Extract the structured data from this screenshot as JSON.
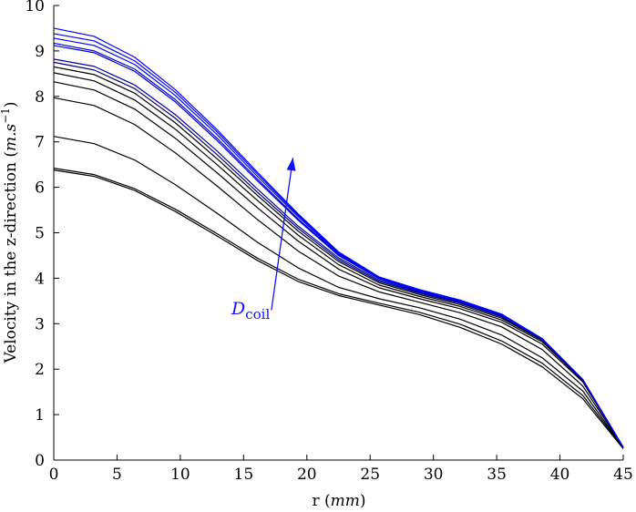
{
  "chart_data": {
    "type": "line",
    "title": "",
    "xlabel": "r (mm)",
    "xlabel_plain": "r (",
    "xlabel_unit": "mm",
    "xlabel_close": ")",
    "ylabel_prefix": "Velocity in the z-direction (",
    "ylabel_unit": "m.s",
    "ylabel_exp": "−1",
    "ylabel_close": ")",
    "xlim": [
      0,
      45
    ],
    "ylim": [
      0,
      10
    ],
    "xticks": [
      0,
      5,
      10,
      15,
      20,
      25,
      30,
      35,
      40,
      45
    ],
    "yticks": [
      0,
      1,
      2,
      3,
      4,
      5,
      6,
      7,
      8,
      9,
      10
    ],
    "grid": false,
    "x": [
      0,
      3.2,
      6.4,
      9.6,
      12.9,
      16.1,
      19.3,
      22.5,
      25.7,
      28.9,
      32.1,
      35.4,
      38.6,
      41.8,
      45
    ],
    "series": [
      {
        "color": "#000000",
        "values": [
          6.38,
          6.24,
          5.93,
          5.47,
          4.93,
          4.39,
          3.93,
          3.62,
          3.41,
          3.2,
          2.92,
          2.55,
          2.05,
          1.35,
          0.25
        ]
      },
      {
        "color": "#000000",
        "values": [
          6.42,
          6.28,
          5.97,
          5.52,
          4.98,
          4.44,
          3.98,
          3.66,
          3.45,
          3.25,
          2.99,
          2.62,
          2.13,
          1.42,
          0.27
        ]
      },
      {
        "color": "#000000",
        "values": [
          7.12,
          6.96,
          6.6,
          6.06,
          5.43,
          4.79,
          4.23,
          3.8,
          3.55,
          3.35,
          3.1,
          2.75,
          2.25,
          1.52,
          0.27
        ]
      },
      {
        "color": "#000000",
        "values": [
          7.97,
          7.8,
          7.38,
          6.76,
          6.03,
          5.29,
          4.6,
          4.05,
          3.7,
          3.47,
          3.24,
          2.93,
          2.43,
          1.63,
          0.28
        ]
      },
      {
        "color": "#000000",
        "values": [
          8.32,
          8.14,
          7.72,
          7.08,
          6.32,
          5.55,
          4.82,
          4.2,
          3.79,
          3.55,
          3.33,
          3.03,
          2.55,
          1.72,
          0.28
        ]
      },
      {
        "color": "#000000",
        "values": [
          8.52,
          8.34,
          7.92,
          7.28,
          6.5,
          5.71,
          4.95,
          4.3,
          3.85,
          3.6,
          3.38,
          3.08,
          2.6,
          1.75,
          0.28
        ]
      },
      {
        "color": "#000000",
        "values": [
          8.65,
          8.48,
          8.07,
          7.42,
          6.63,
          5.82,
          5.04,
          4.37,
          3.9,
          3.64,
          3.42,
          3.12,
          2.63,
          1.77,
          0.28
        ]
      },
      {
        "color": "#00007a",
        "values": [
          8.75,
          8.58,
          8.17,
          7.52,
          6.72,
          5.89,
          5.1,
          4.41,
          3.93,
          3.67,
          3.45,
          3.15,
          2.65,
          1.77,
          0.28
        ]
      },
      {
        "color": "#0000a8",
        "values": [
          8.82,
          8.66,
          8.25,
          7.6,
          6.8,
          5.96,
          5.15,
          4.45,
          3.96,
          3.69,
          3.47,
          3.17,
          2.66,
          1.77,
          0.28
        ]
      },
      {
        "color": "#0000c8",
        "values": [
          9.12,
          8.96,
          8.55,
          7.88,
          7.03,
          6.14,
          5.28,
          4.5,
          3.99,
          3.71,
          3.48,
          3.18,
          2.66,
          1.77,
          0.28
        ]
      },
      {
        "color": "#0000e0",
        "values": [
          9.17,
          9.0,
          8.6,
          7.93,
          7.08,
          6.18,
          5.31,
          4.52,
          4.0,
          3.72,
          3.49,
          3.19,
          2.66,
          1.77,
          0.28
        ]
      },
      {
        "color": "#0000ff",
        "values": [
          9.28,
          9.12,
          8.7,
          8.02,
          7.16,
          6.24,
          5.36,
          4.54,
          4.01,
          3.73,
          3.5,
          3.19,
          2.67,
          1.77,
          0.28
        ]
      },
      {
        "color": "#0000ff",
        "values": [
          9.38,
          9.22,
          8.78,
          8.09,
          7.22,
          6.29,
          5.39,
          4.56,
          4.02,
          3.74,
          3.51,
          3.2,
          2.67,
          1.77,
          0.28
        ]
      },
      {
        "color": "#0000ff",
        "values": [
          9.5,
          9.32,
          8.86,
          8.15,
          7.27,
          6.33,
          5.42,
          4.58,
          4.03,
          3.75,
          3.52,
          3.21,
          2.67,
          1.77,
          0.28
        ]
      }
    ],
    "annotation": {
      "label_main": "D",
      "label_sub": "coil",
      "color": "#1111ff",
      "arrow_from": [
        17.2,
        3.3
      ],
      "arrow_to": [
        18.9,
        6.65
      ]
    }
  }
}
